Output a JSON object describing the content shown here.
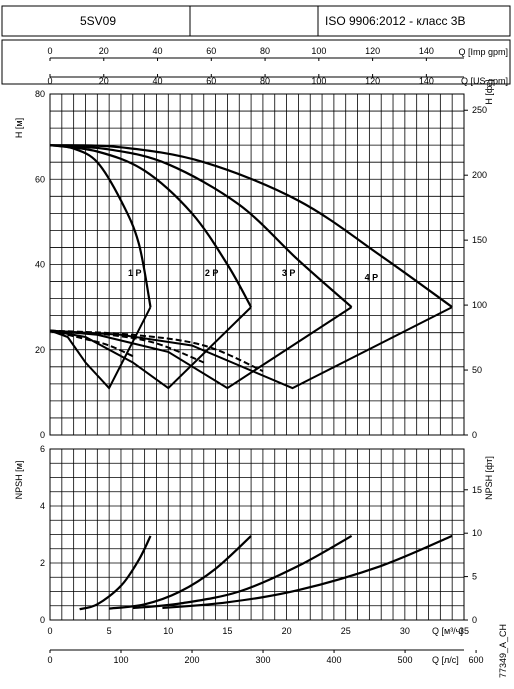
{
  "header": {
    "model": "5SV09",
    "standard": "ISO 9906:2012 - класс 3В"
  },
  "chart_data": [
    {
      "type": "line",
      "title": "",
      "x_axis_bottom": {
        "label": "Q [м³/ч]",
        "range": [
          0,
          35
        ],
        "ticks": [
          0,
          5,
          10,
          15,
          20,
          25,
          30,
          35
        ]
      },
      "x_axis_top_imp": {
        "label": "Q [Imp gpm]",
        "range": [
          0,
          154
        ],
        "ticks": [
          0,
          20,
          40,
          60,
          80,
          100,
          120,
          140
        ]
      },
      "x_axis_top_us": {
        "label": "Q [US gpm]",
        "range": [
          0,
          154
        ],
        "ticks": [
          0,
          20,
          40,
          60,
          80,
          100,
          120,
          140
        ]
      },
      "y_axis_left": {
        "label": "H [м]",
        "range": [
          0,
          80
        ],
        "ticks": [
          0,
          20,
          40,
          60,
          80
        ]
      },
      "y_axis_right": {
        "label": "H [фт]",
        "range": [
          0,
          262.5
        ],
        "ticks": [
          0,
          50,
          100,
          150,
          200,
          250
        ]
      },
      "series": [
        {
          "name": "1 P",
          "head": [
            [
              0,
              68
            ],
            [
              2,
              67.2
            ],
            [
              4,
              64
            ],
            [
              6,
              55
            ],
            [
              7.5,
              45
            ],
            [
              8.5,
              30
            ]
          ],
          "efficiency": [
            [
              0,
              24.5
            ],
            [
              1.5,
              23
            ],
            [
              3,
              17
            ],
            [
              5,
              11
            ],
            [
              8.5,
              30
            ]
          ],
          "dashed": [
            [
              0,
              24.5
            ],
            [
              3,
              22.5
            ],
            [
              5,
              21
            ],
            [
              7,
              18.5
            ]
          ]
        },
        {
          "name": "2 P",
          "head": [
            [
              0,
              68
            ],
            [
              4,
              66.5
            ],
            [
              8,
              62
            ],
            [
              12,
              52
            ],
            [
              15,
              40
            ],
            [
              17,
              30
            ]
          ],
          "efficiency": [
            [
              0,
              24.5
            ],
            [
              3,
              23
            ],
            [
              7,
              17
            ],
            [
              10,
              11
            ],
            [
              17,
              30
            ]
          ],
          "dashed": [
            [
              0,
              24.5
            ],
            [
              5,
              23.5
            ],
            [
              9,
              21.5
            ],
            [
              13,
              17
            ]
          ]
        },
        {
          "name": "3 P",
          "head": [
            [
              0,
              68
            ],
            [
              5,
              67
            ],
            [
              10,
              63.5
            ],
            [
              16,
              54
            ],
            [
              21,
              41
            ],
            [
              25.5,
              30
            ]
          ],
          "efficiency": [
            [
              0,
              24.5
            ],
            [
              4,
              23.5
            ],
            [
              10,
              19.5
            ],
            [
              15,
              11
            ],
            [
              25.5,
              30
            ]
          ],
          "dashed": [
            [
              0,
              24.5
            ],
            [
              7,
              23.5
            ],
            [
              13,
              21
            ],
            [
              18,
              15
            ]
          ]
        },
        {
          "name": "4 P",
          "head": [
            [
              0,
              68
            ],
            [
              6,
              67.5
            ],
            [
              13,
              64
            ],
            [
              21,
              55
            ],
            [
              28,
              42
            ],
            [
              34,
              30
            ]
          ],
          "efficiency": [
            [
              0,
              24.5
            ],
            [
              6,
              23.5
            ],
            [
              12,
              21
            ],
            [
              20.5,
              11
            ],
            [
              34,
              30
            ]
          ],
          "dashed": []
        }
      ]
    },
    {
      "type": "line",
      "title": "",
      "x_axis_bottom": {
        "label": "Q [м³/ч]",
        "range": [
          0,
          35
        ],
        "ticks": [
          0,
          5,
          10,
          15,
          20,
          25,
          30,
          35
        ]
      },
      "x_axis_bottom_ls": {
        "label": "Q [л/с]",
        "range": [
          0,
          583
        ],
        "ticks": [
          0,
          100,
          200,
          300,
          400,
          500,
          600
        ]
      },
      "y_axis_left": {
        "label": "NPSH [м]",
        "range": [
          0,
          6
        ],
        "ticks": [
          0,
          2,
          4,
          6
        ]
      },
      "y_axis_right": {
        "label": "NPSH [фт]",
        "range": [
          0,
          19.7
        ],
        "ticks": [
          0,
          5,
          10,
          15
        ]
      },
      "series": [
        {
          "name": "1 P",
          "values": [
            [
              2.5,
              0.38
            ],
            [
              4,
              0.55
            ],
            [
              6,
              1.2
            ],
            [
              7.5,
              2.1
            ],
            [
              8.5,
              2.95
            ]
          ]
        },
        {
          "name": "2 P",
          "values": [
            [
              5,
              0.4
            ],
            [
              8,
              0.55
            ],
            [
              11,
              1.0
            ],
            [
              14,
              1.8
            ],
            [
              17,
              2.95
            ]
          ]
        },
        {
          "name": "3 P",
          "values": [
            [
              7,
              0.42
            ],
            [
              11,
              0.58
            ],
            [
              16,
              1.0
            ],
            [
              21,
              1.9
            ],
            [
              25.5,
              2.95
            ]
          ]
        },
        {
          "name": "4 P",
          "values": [
            [
              9.5,
              0.42
            ],
            [
              15,
              0.62
            ],
            [
              21,
              1.05
            ],
            [
              28,
              1.9
            ],
            [
              34,
              2.95
            ]
          ]
        }
      ]
    }
  ],
  "code": "77349_A_CH"
}
